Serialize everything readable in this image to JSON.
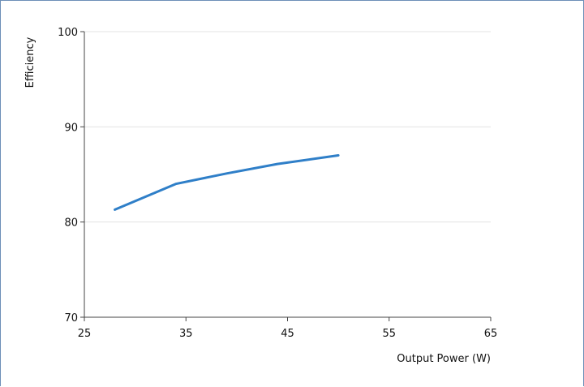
{
  "chart_data": {
    "type": "line",
    "title": "",
    "xlabel": "Output Power (W)",
    "ylabel": "Efficiency",
    "xlim": [
      25,
      65
    ],
    "ylim": [
      70,
      100
    ],
    "x_ticks": [
      25,
      35,
      45,
      55,
      65
    ],
    "y_ticks": [
      70,
      80,
      90,
      100
    ],
    "grid": "horizontal",
    "legend": "none",
    "series": [
      {
        "color": "#2f7fc8",
        "points": [
          {
            "x": 28,
            "y": 81.3
          },
          {
            "x": 34,
            "y": 84.0
          },
          {
            "x": 39,
            "y": 85.1
          },
          {
            "x": 44,
            "y": 86.1
          },
          {
            "x": 50,
            "y": 87.0
          }
        ]
      }
    ]
  }
}
